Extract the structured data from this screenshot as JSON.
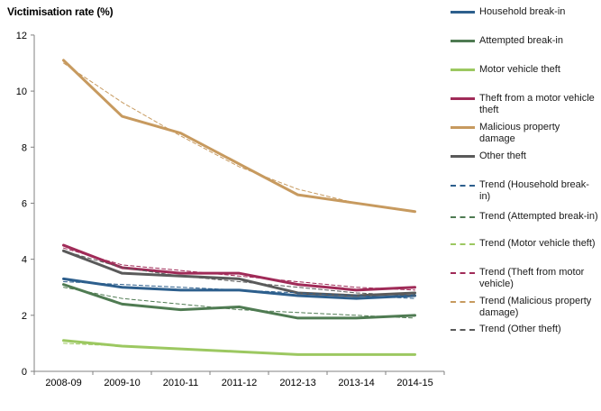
{
  "title": "Victimisation rate (%)",
  "chart_data": {
    "type": "line",
    "title": "Victimisation rate (%)",
    "ylabel": "Victimisation rate (%)",
    "xlabel": "",
    "ylim": [
      0,
      12
    ],
    "yticks": [
      0,
      2,
      4,
      6,
      8,
      10,
      12
    ],
    "grid": false,
    "legend_position": "right",
    "categories": [
      "2008-09",
      "2009-10",
      "2010-11",
      "2011-12",
      "2012-13",
      "2013-14",
      "2014-15"
    ],
    "series": [
      {
        "name": "Household break-in",
        "color": "#2D5F8D",
        "style": "solid",
        "values": [
          3.3,
          3.0,
          2.9,
          2.9,
          2.7,
          2.6,
          2.7
        ]
      },
      {
        "name": "Attempted break-in",
        "color": "#4F7B52",
        "style": "solid",
        "values": [
          3.1,
          2.4,
          2.2,
          2.3,
          1.9,
          1.9,
          2.0
        ]
      },
      {
        "name": "Motor vehicle theft",
        "color": "#9CC861",
        "style": "solid",
        "values": [
          1.1,
          0.9,
          0.8,
          0.7,
          0.6,
          0.6,
          0.6
        ]
      },
      {
        "name": "Theft from a motor vehicle theft",
        "color": "#A02B58",
        "style": "solid",
        "values": [
          4.5,
          3.7,
          3.5,
          3.5,
          3.1,
          2.9,
          3.0
        ]
      },
      {
        "name": "Malicious property damage",
        "color": "#C79A5F",
        "style": "solid",
        "values": [
          11.1,
          9.1,
          8.5,
          7.4,
          6.3,
          6.0,
          5.7
        ]
      },
      {
        "name": "Other theft",
        "color": "#5A5A5A",
        "style": "solid",
        "values": [
          4.3,
          3.5,
          3.4,
          3.3,
          2.8,
          2.7,
          2.8
        ]
      },
      {
        "name": "Trend (Household break-in)",
        "color": "#2D5F8D",
        "style": "dashed",
        "values": [
          3.2,
          3.1,
          3.0,
          2.9,
          2.8,
          2.7,
          2.6
        ]
      },
      {
        "name": "Trend (Attempted break-in)",
        "color": "#4F7B52",
        "style": "dashed",
        "values": [
          3.0,
          2.6,
          2.4,
          2.2,
          2.1,
          2.0,
          1.9
        ]
      },
      {
        "name": "Trend (Motor vehicle theft)",
        "color": "#9CC861",
        "style": "dashed",
        "values": [
          1.0,
          0.9,
          0.8,
          0.7,
          0.6,
          0.6,
          0.6
        ]
      },
      {
        "name": "Trend (Theft from motor vehicle)",
        "color": "#A02B58",
        "style": "dashed",
        "values": [
          4.4,
          3.8,
          3.6,
          3.4,
          3.2,
          3.0,
          2.9
        ]
      },
      {
        "name": "Trend (Malicious property damage)",
        "color": "#C79A5F",
        "style": "dashed",
        "values": [
          11.0,
          9.6,
          8.4,
          7.3,
          6.5,
          6.0,
          5.7
        ]
      },
      {
        "name": "Trend (Other theft)",
        "color": "#5A5A5A",
        "style": "dashed",
        "values": [
          4.3,
          3.7,
          3.4,
          3.2,
          3.0,
          2.8,
          2.7
        ]
      }
    ],
    "axis_color": "#808080",
    "text_color": "#000000"
  }
}
